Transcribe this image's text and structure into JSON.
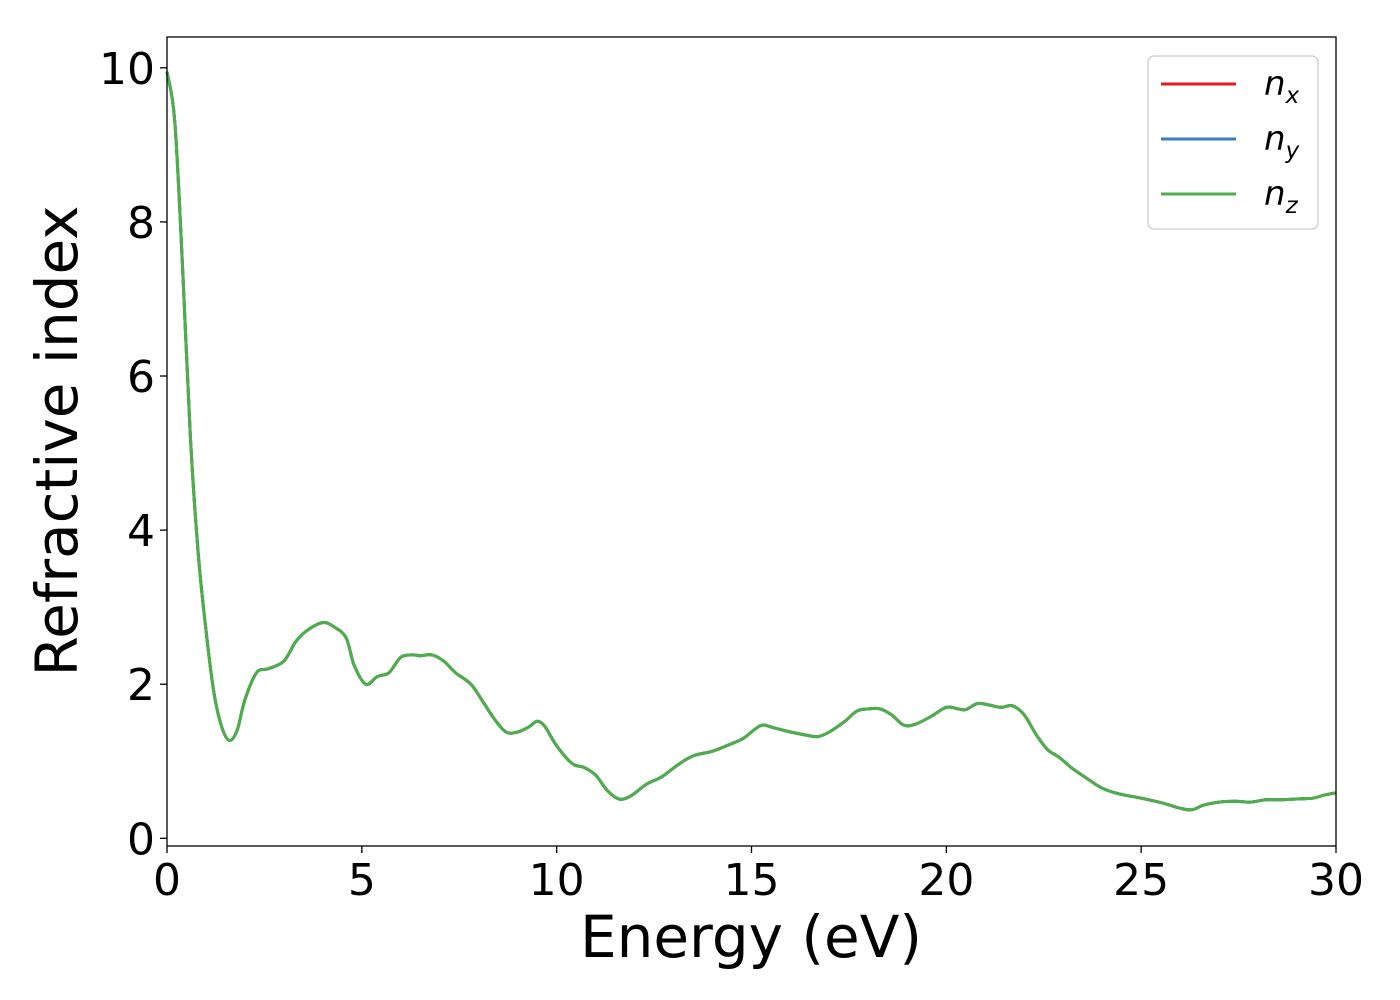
{
  "chart_data": {
    "type": "line",
    "title": "",
    "xlabel": "Energy (eV)",
    "ylabel": "Refractive index",
    "xlim": [
      0,
      30
    ],
    "ylim": [
      -0.1,
      10.4
    ],
    "xticks": [
      "0",
      "5",
      "10",
      "15",
      "20",
      "25",
      "30"
    ],
    "yticks": [
      "0",
      "2",
      "4",
      "6",
      "8",
      "10"
    ],
    "grid": false,
    "legend_position": "top-right",
    "series": [
      {
        "name": "n",
        "subscript": "x",
        "color": "#e41a1c",
        "points": []
      },
      {
        "name": "n",
        "subscript": "y",
        "color": "#377eb8",
        "points": []
      },
      {
        "name": "n",
        "subscript": "z",
        "color": "#4daf4a",
        "points": []
      }
    ],
    "shared_points": [
      [
        0,
        9.95
      ],
      [
        0.2,
        9.3
      ],
      [
        0.4,
        7.4
      ],
      [
        0.6,
        5.2
      ],
      [
        0.8,
        3.7
      ],
      [
        1.0,
        2.7
      ],
      [
        1.2,
        1.9
      ],
      [
        1.4,
        1.45
      ],
      [
        1.6,
        1.27
      ],
      [
        1.8,
        1.4
      ],
      [
        2.0,
        1.8
      ],
      [
        2.3,
        2.15
      ],
      [
        2.6,
        2.2
      ],
      [
        3.0,
        2.3
      ],
      [
        3.3,
        2.55
      ],
      [
        3.6,
        2.7
      ],
      [
        4.0,
        2.8
      ],
      [
        4.3,
        2.74
      ],
      [
        4.6,
        2.6
      ],
      [
        4.8,
        2.25
      ],
      [
        5.1,
        2.0
      ],
      [
        5.4,
        2.1
      ],
      [
        5.7,
        2.15
      ],
      [
        6.0,
        2.35
      ],
      [
        6.3,
        2.38
      ],
      [
        6.5,
        2.37
      ],
      [
        6.8,
        2.38
      ],
      [
        7.1,
        2.3
      ],
      [
        7.4,
        2.15
      ],
      [
        7.8,
        2.0
      ],
      [
        8.1,
        1.78
      ],
      [
        8.4,
        1.55
      ],
      [
        8.7,
        1.38
      ],
      [
        9.0,
        1.38
      ],
      [
        9.3,
        1.45
      ],
      [
        9.5,
        1.52
      ],
      [
        9.7,
        1.45
      ],
      [
        10.0,
        1.2
      ],
      [
        10.4,
        0.97
      ],
      [
        10.7,
        0.92
      ],
      [
        11.0,
        0.82
      ],
      [
        11.3,
        0.62
      ],
      [
        11.6,
        0.51
      ],
      [
        11.9,
        0.55
      ],
      [
        12.3,
        0.7
      ],
      [
        12.7,
        0.8
      ],
      [
        13.1,
        0.95
      ],
      [
        13.5,
        1.07
      ],
      [
        14.0,
        1.13
      ],
      [
        14.5,
        1.23
      ],
      [
        14.8,
        1.3
      ],
      [
        15.1,
        1.42
      ],
      [
        15.3,
        1.47
      ],
      [
        15.6,
        1.43
      ],
      [
        16.0,
        1.38
      ],
      [
        16.4,
        1.34
      ],
      [
        16.7,
        1.32
      ],
      [
        17.0,
        1.38
      ],
      [
        17.4,
        1.52
      ],
      [
        17.7,
        1.65
      ],
      [
        18.0,
        1.68
      ],
      [
        18.3,
        1.68
      ],
      [
        18.6,
        1.6
      ],
      [
        18.9,
        1.47
      ],
      [
        19.2,
        1.48
      ],
      [
        19.6,
        1.58
      ],
      [
        20.0,
        1.7
      ],
      [
        20.3,
        1.68
      ],
      [
        20.5,
        1.67
      ],
      [
        20.8,
        1.75
      ],
      [
        21.1,
        1.73
      ],
      [
        21.4,
        1.7
      ],
      [
        21.7,
        1.72
      ],
      [
        22.0,
        1.6
      ],
      [
        22.3,
        1.35
      ],
      [
        22.6,
        1.15
      ],
      [
        22.9,
        1.05
      ],
      [
        23.2,
        0.92
      ],
      [
        23.6,
        0.78
      ],
      [
        24.0,
        0.65
      ],
      [
        24.4,
        0.58
      ],
      [
        24.8,
        0.54
      ],
      [
        25.2,
        0.5
      ],
      [
        25.6,
        0.45
      ],
      [
        26.0,
        0.39
      ],
      [
        26.3,
        0.37
      ],
      [
        26.6,
        0.43
      ],
      [
        27.0,
        0.47
      ],
      [
        27.4,
        0.48
      ],
      [
        27.8,
        0.47
      ],
      [
        28.2,
        0.5
      ],
      [
        28.6,
        0.5
      ],
      [
        29.0,
        0.51
      ],
      [
        29.4,
        0.52
      ],
      [
        29.7,
        0.56
      ],
      [
        30.0,
        0.59
      ]
    ]
  }
}
